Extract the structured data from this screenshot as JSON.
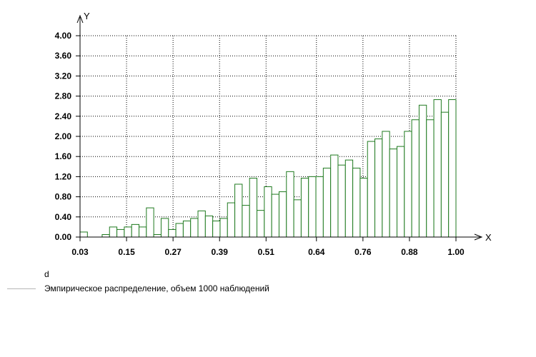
{
  "chart_data": {
    "type": "bar",
    "xlabel": "X",
    "ylabel": "Y",
    "xlim": [
      0.03,
      1.0
    ],
    "ylim": [
      0,
      4.0
    ],
    "x_ticks": [
      0.03,
      0.15,
      0.27,
      0.39,
      0.51,
      0.64,
      0.76,
      0.88,
      1.0
    ],
    "x_tick_labels": [
      "0.03",
      "0.15",
      "0.27",
      "0.39",
      "0.51",
      "0.64",
      "0.76",
      "0.88",
      "1.00"
    ],
    "y_ticks": [
      0.0,
      0.4,
      0.8,
      1.2,
      1.6,
      2.0,
      2.4,
      2.8,
      3.2,
      3.6,
      4.0
    ],
    "y_tick_labels": [
      "0.00",
      "0.40",
      "0.80",
      "1.20",
      "1.60",
      "2.00",
      "2.40",
      "2.80",
      "3.20",
      "3.60",
      "4.00"
    ],
    "grid": true,
    "bin_start": 0.03,
    "bin_end": 1.0,
    "values": [
      0.1,
      0.0,
      0.0,
      0.05,
      0.2,
      0.15,
      0.2,
      0.25,
      0.2,
      0.58,
      0.05,
      0.37,
      0.15,
      0.27,
      0.32,
      0.37,
      0.52,
      0.42,
      0.32,
      0.37,
      0.68,
      1.05,
      0.63,
      1.17,
      0.53,
      1.0,
      0.85,
      0.9,
      1.3,
      0.74,
      1.17,
      1.2,
      1.2,
      1.37,
      1.63,
      1.43,
      1.53,
      1.37,
      1.17,
      1.9,
      1.95,
      2.1,
      1.75,
      1.8,
      2.1,
      2.33,
      2.62,
      2.33,
      2.73,
      2.48,
      2.73
    ],
    "series_color": "#1f7a1f",
    "legend": {
      "title": "d",
      "placement": "bottom-left",
      "entries": [
        {
          "label": "Эмпирическое распределение, объем 1000 наблюдений",
          "color": "#b5b5b5"
        }
      ]
    }
  }
}
